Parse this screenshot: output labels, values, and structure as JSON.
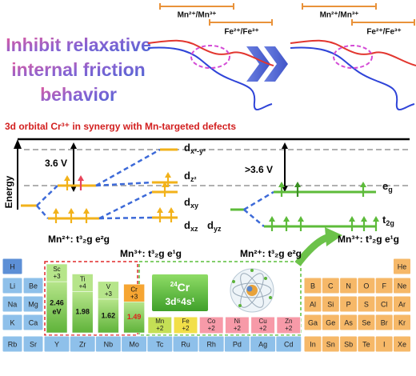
{
  "top_panels": [
    {
      "labels": [
        "Mn²⁺/Mn³⁺",
        "Fe²⁺/Fe³⁺"
      ]
    },
    {
      "labels": [
        "Mn²⁺/Mn³⁺",
        "Fe²⁺/Fe³⁺"
      ]
    }
  ],
  "headline": [
    "Inhibit relaxative",
    "internal friction",
    "behavior"
  ],
  "banner": "3d orbital Cr³⁺ in synergy with Mn-targeted defects",
  "energy_axis": "Energy",
  "left_diagram": {
    "gap": "3.6 V",
    "orbitals": [
      {
        "base": "d",
        "sub": "x²-y²"
      },
      {
        "base": "d",
        "sub": "z²"
      },
      {
        "base": "d",
        "sub": "xy"
      },
      {
        "base": "d",
        "sub": "xz"
      },
      {
        "base": "d",
        "sub": "yz"
      }
    ],
    "configs": [
      "Mn²⁺: t³₂g e²g",
      "Mn³⁺: t³₂g e¹g"
    ]
  },
  "right_diagram": {
    "gap": ">3.6 V",
    "orbitals": [
      {
        "base": "e",
        "sub": "g"
      },
      {
        "base": "t",
        "sub": "2g"
      }
    ],
    "configs": [
      "Mn²⁺: t³₂g e²g",
      "Mn³⁺: t³₂g e¹g"
    ]
  },
  "periodic_table": {
    "s_block": [
      "H",
      "Li",
      "Be",
      "Na",
      "Mg",
      "K",
      "Ca",
      "Rb",
      "Sr"
    ],
    "p_block": [
      "He",
      "B",
      "C",
      "N",
      "O",
      "F",
      "Ne",
      "Al",
      "Si",
      "P",
      "S",
      "Cl",
      "Ar",
      "Ga",
      "Ge",
      "As",
      "Se",
      "Br",
      "Kr",
      "In",
      "Sn",
      "Sb",
      "Te",
      "I",
      "Xe"
    ],
    "period5_d": [
      "Y",
      "Zr",
      "Nb",
      "Mo",
      "Tc",
      "Ru",
      "Rh",
      "Pd",
      "Ag",
      "Cd"
    ],
    "bars": [
      {
        "symbol": "Sc",
        "charge": "+3",
        "value": 2.46,
        "unit": "eV"
      },
      {
        "symbol": "Ti",
        "charge": "+4",
        "value": 1.98
      },
      {
        "symbol": "V",
        "charge": "+3",
        "value": 1.62
      },
      {
        "symbol": "Cr",
        "charge": "+3",
        "value": 1.49
      }
    ],
    "divalent": [
      {
        "symbol": "Mn",
        "charge": "+2"
      },
      {
        "symbol": "Fe",
        "charge": "+2"
      },
      {
        "symbol": "Co",
        "charge": "+2"
      },
      {
        "symbol": "Ni",
        "charge": "+2"
      },
      {
        "symbol": "Cu",
        "charge": "+2"
      },
      {
        "symbol": "Zn",
        "charge": "+2"
      }
    ],
    "highlight": {
      "number": "24",
      "symbol": "Cr",
      "config": "3d⁵4s¹"
    }
  }
}
